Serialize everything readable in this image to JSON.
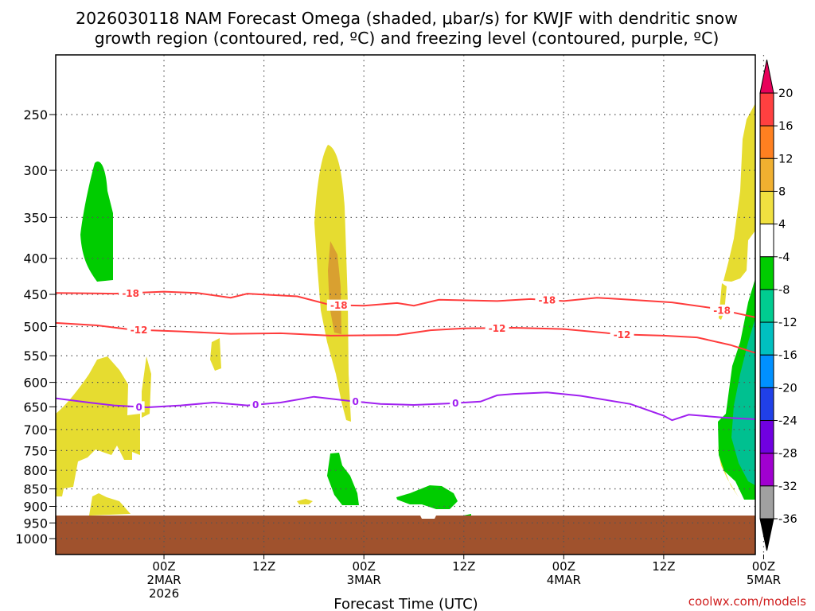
{
  "chart_data": {
    "type": "time-height",
    "title_line1": "2026030118 NAM Forecast Omega (shaded, μbar/s) for KWJF with dendritic snow",
    "title_line2": "growth region (contoured, red, ºC) and freezing level (contoured, purple, ºC)",
    "xlabel": "Forecast Time (UTC)",
    "ylabel": "",
    "credit": "coolwx.com/models",
    "y_ticks": [
      "250",
      "300",
      "350",
      "400",
      "450",
      "500",
      "550",
      "600",
      "650",
      "700",
      "750",
      "800",
      "850",
      "900",
      "950",
      "1000"
    ],
    "x_ticks": [
      {
        "l1": "00Z",
        "l2": "2MAR",
        "l3": "2026"
      },
      {
        "l1": "12Z",
        "l2": "",
        "l3": ""
      },
      {
        "l1": "00Z",
        "l2": "3MAR",
        "l3": ""
      },
      {
        "l1": "12Z",
        "l2": "",
        "l3": ""
      },
      {
        "l1": "00Z",
        "l2": "4MAR",
        "l3": ""
      },
      {
        "l1": "12Z",
        "l2": "",
        "l3": ""
      },
      {
        "l1": "00Z",
        "l2": "5MAR",
        "l3": ""
      }
    ],
    "x_range_hours": [
      -13,
      71
    ],
    "y_range_hpa": [
      200,
      1050
    ],
    "contours": [
      {
        "name": "-18",
        "color": "#ff3c3c",
        "label_hours": [
          -4,
          21,
          46,
          67
        ],
        "points": [
          [
            -13,
            448
          ],
          [
            -6,
            449
          ],
          [
            0,
            446
          ],
          [
            4,
            448
          ],
          [
            8,
            455
          ],
          [
            10,
            449
          ],
          [
            16,
            453
          ],
          [
            20,
            466
          ],
          [
            24,
            467
          ],
          [
            28,
            463
          ],
          [
            30,
            467
          ],
          [
            33,
            458
          ],
          [
            40,
            460
          ],
          [
            44,
            457
          ],
          [
            48,
            460
          ],
          [
            52,
            455
          ],
          [
            56,
            458
          ],
          [
            61,
            462
          ],
          [
            66,
            471
          ],
          [
            71,
            485
          ]
        ]
      },
      {
        "name": "-12",
        "color": "#ff3c3c",
        "label_hours": [
          -3,
          40,
          55
        ],
        "points": [
          [
            -13,
            494
          ],
          [
            -8,
            498
          ],
          [
            -4,
            505
          ],
          [
            2,
            508
          ],
          [
            8,
            512
          ],
          [
            14,
            511
          ],
          [
            20,
            515
          ],
          [
            28,
            514
          ],
          [
            32,
            506
          ],
          [
            36,
            503
          ],
          [
            42,
            502
          ],
          [
            48,
            504
          ],
          [
            55,
            513
          ],
          [
            60,
            515
          ],
          [
            64,
            518
          ],
          [
            68,
            531
          ],
          [
            71,
            545
          ]
        ]
      },
      {
        "name": "0",
        "color": "#a020f0",
        "label_hours": [
          -3,
          11,
          23,
          35
        ],
        "points": [
          [
            -13,
            632
          ],
          [
            -9,
            641
          ],
          [
            -6,
            647
          ],
          [
            -2,
            651
          ],
          [
            2,
            647
          ],
          [
            6,
            641
          ],
          [
            10,
            647
          ],
          [
            14,
            641
          ],
          [
            18,
            629
          ],
          [
            22,
            637
          ],
          [
            26,
            644
          ],
          [
            30,
            646
          ],
          [
            34,
            643
          ],
          [
            38,
            639
          ],
          [
            40,
            626
          ],
          [
            42,
            623
          ],
          [
            46,
            620
          ],
          [
            50,
            627
          ],
          [
            56,
            644
          ],
          [
            60,
            669
          ],
          [
            61,
            679
          ],
          [
            63,
            667
          ],
          [
            67,
            673
          ],
          [
            71,
            677
          ]
        ]
      }
    ],
    "colorbar": {
      "labels": [
        "20",
        "16",
        "12",
        "8",
        "4",
        "-4",
        "-8",
        "-12",
        "-16",
        "-20",
        "-24",
        "-28",
        "-32",
        "-36"
      ],
      "colors": [
        "#e8005a",
        "#ff4040",
        "#ff8020",
        "#f0b030",
        "#f0e040",
        "#ffffff",
        "#00cc00",
        "#00cc90",
        "#00c0c0",
        "#0090ff",
        "#2040e8",
        "#7000e0",
        "#a000d0",
        "#a0a0a0",
        "#000000"
      ]
    },
    "omega_fields": [
      {
        "value": "-4 to -8",
        "color": "#00cc00",
        "region": "upper left"
      },
      {
        "value": "4 to 8",
        "color": "#e6dc30",
        "region": "lower left"
      },
      {
        "value": "4 to 8",
        "color": "#e6dc30",
        "region": "column 3MAR"
      },
      {
        "value": "8 to 12",
        "color": "#d9a030",
        "region": "column 3MAR core"
      },
      {
        "value": "-4 to -8",
        "color": "#00cc00",
        "region": "low level 3MAR"
      },
      {
        "value": "-8 to -16",
        "color": "#00c090",
        "region": "right edge 5MAR"
      }
    ]
  }
}
